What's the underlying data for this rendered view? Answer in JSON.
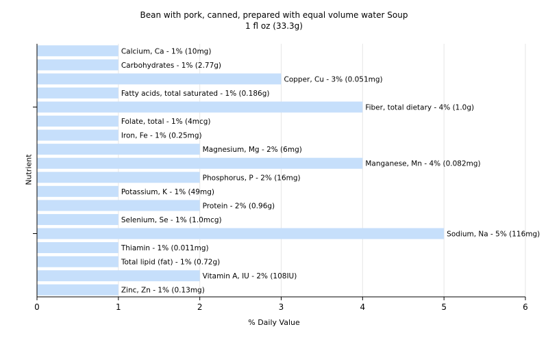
{
  "chart_data": {
    "type": "bar",
    "orientation": "horizontal",
    "title": "Bean with pork, canned, prepared with equal volume water Soup",
    "subtitle": "1 fl oz (33.3g)",
    "xlabel": "% Daily Value",
    "ylabel": "Nutrient",
    "xlim": [
      0,
      6
    ],
    "xticks": [
      "0",
      "1",
      "2",
      "3",
      "4",
      "5",
      "6"
    ],
    "grid": true,
    "bar_color": "#c6dffb",
    "categories": [
      "Calcium, Ca",
      "Carbohydrates",
      "Copper, Cu",
      "Fatty acids, total saturated",
      "Fiber, total dietary",
      "Folate, total",
      "Iron, Fe",
      "Magnesium, Mg",
      "Manganese, Mn",
      "Phosphorus, P",
      "Potassium, K",
      "Protein",
      "Selenium, Se",
      "Sodium, Na",
      "Thiamin",
      "Total lipid (fat)",
      "Vitamin A, IU",
      "Zinc, Zn"
    ],
    "values": [
      1,
      1,
      3,
      1,
      4,
      1,
      1,
      2,
      4,
      2,
      1,
      2,
      1,
      5,
      1,
      1,
      2,
      1
    ],
    "bar_labels": [
      "Calcium, Ca - 1% (10mg)",
      "Carbohydrates - 1% (2.77g)",
      "Copper, Cu - 3% (0.051mg)",
      "Fatty acids, total saturated - 1% (0.186g)",
      "Fiber, total dietary - 4% (1.0g)",
      "Folate, total - 1% (4mcg)",
      "Iron, Fe - 1% (0.25mg)",
      "Magnesium, Mg - 2% (6mg)",
      "Manganese, Mn - 4% (0.082mg)",
      "Phosphorus, P - 2% (16mg)",
      "Potassium, K - 1% (49mg)",
      "Protein - 2% (0.96g)",
      "Selenium, Se - 1% (1.0mcg)",
      "Sodium, Na - 5% (116mg)",
      "Thiamin - 1% (0.011mg)",
      "Total lipid (fat) - 1% (0.72g)",
      "Vitamin A, IU - 2% (108IU)",
      "Zinc, Zn - 1% (0.13mg)"
    ]
  }
}
